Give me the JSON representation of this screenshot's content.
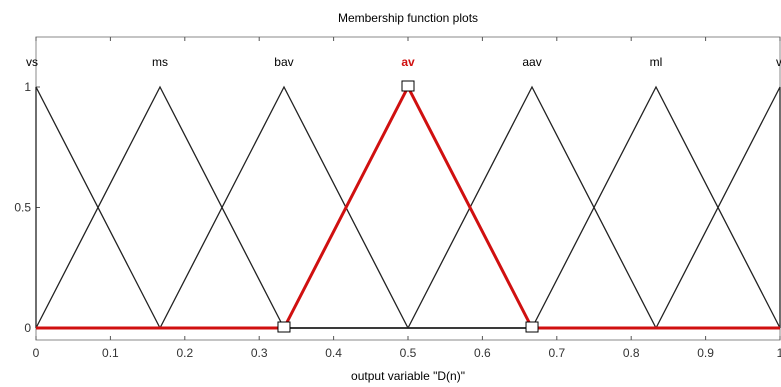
{
  "chart_data": {
    "type": "line",
    "title": "Membership function plots",
    "xlabel": "output variable \"D(n)\"",
    "ylabel": "",
    "xlim": [
      0,
      1
    ],
    "ylim": [
      0,
      1
    ],
    "xticks": [
      "0",
      "0.1",
      "0.2",
      "0.3",
      "0.4",
      "0.5",
      "0.6",
      "0.7",
      "0.8",
      "0.9",
      "1"
    ],
    "yticks": [
      "0",
      "0.5",
      "1"
    ],
    "grid": false,
    "selected_series": "av",
    "colors": {
      "normal": "#222222",
      "selected": "#d01010",
      "axis": "#555555"
    },
    "series": [
      {
        "name": "vs",
        "x": [
          0,
          0,
          0.1667
        ],
        "y": [
          1,
          1,
          0
        ]
      },
      {
        "name": "ms",
        "x": [
          0,
          0.1667,
          0.3333
        ],
        "y": [
          0,
          1,
          0
        ]
      },
      {
        "name": "bav",
        "x": [
          0.1667,
          0.3333,
          0.5
        ],
        "y": [
          0,
          1,
          0
        ]
      },
      {
        "name": "av",
        "x": [
          0.3333,
          0.5,
          0.6667
        ],
        "y": [
          0,
          1,
          0
        ]
      },
      {
        "name": "aav",
        "x": [
          0.5,
          0.6667,
          0.8333
        ],
        "y": [
          0,
          1,
          0
        ]
      },
      {
        "name": "ml",
        "x": [
          0.6667,
          0.8333,
          1
        ],
        "y": [
          0,
          1,
          0
        ]
      },
      {
        "name": "vl",
        "x": [
          0.8333,
          1,
          1
        ],
        "y": [
          0,
          1,
          1
        ]
      }
    ]
  }
}
